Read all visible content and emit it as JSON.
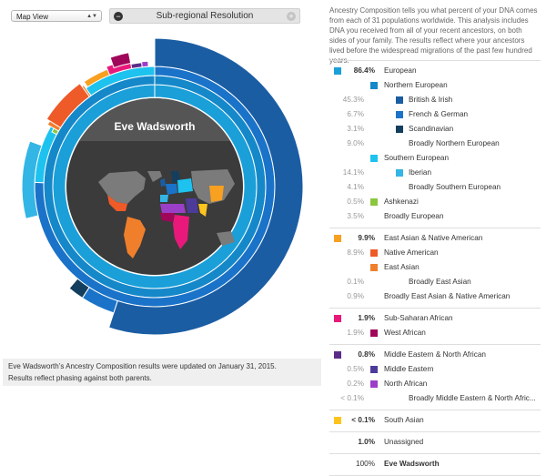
{
  "controls": {
    "view_select": "Map View",
    "resolution_label": "Sub-regional Resolution"
  },
  "chart": {
    "person_name": "Eve Wadsworth",
    "colors": {
      "background_disk": "#3b3b3b",
      "name_band": "#555555",
      "continents": "#7b7b7b"
    }
  },
  "notice": {
    "line1": "Eve Wadsworth’s Ancestry Composition results were updated on January 31, 2015.",
    "line2": "Results reflect phasing against both parents."
  },
  "intro": "Ancestry Composition tells you what percent of your DNA comes from each of 31 populations worldwide. This analysis includes DNA you received from all of your recent ancestors, on both sides of your family. The results reflect where your ancestors lived before the widespread migrations of the past few hundred years.",
  "legend": [
    {
      "rows": [
        {
          "level": 0,
          "pct": "86.4%",
          "label": "European",
          "color": "#1a9fd9"
        },
        {
          "level": 1,
          "pct": "",
          "label": "Northern European",
          "color": "#1588c9"
        },
        {
          "level": 2,
          "pct": "45.3%",
          "label": "British & Irish",
          "color": "#1b5da3"
        },
        {
          "level": 2,
          "pct": "6.7%",
          "label": "French & German",
          "color": "#1a73c8"
        },
        {
          "level": 2,
          "pct": "3.1%",
          "label": "Scandinavian",
          "color": "#143e5e"
        },
        {
          "level": 3,
          "pct": "9.0%",
          "label": "Broadly Northern European"
        },
        {
          "level": 1,
          "pct": "",
          "label": "Southern European",
          "color": "#1ec2ef"
        },
        {
          "level": 2,
          "pct": "14.1%",
          "label": "Iberian",
          "color": "#33b5e5"
        },
        {
          "level": 3,
          "pct": "4.1%",
          "label": "Broadly Southern European"
        },
        {
          "level": 1,
          "pct": "0.5%",
          "label": "Ashkenazi",
          "color": "#8cc63f"
        },
        {
          "level": 3,
          "pct": "3.5%",
          "label": "Broadly European",
          "offset": 1
        }
      ]
    },
    {
      "rows": [
        {
          "level": 0,
          "pct": "9.9%",
          "label": "East Asian & Native American",
          "color": "#f8a020"
        },
        {
          "level": 1,
          "pct": "8.9%",
          "label": "Native American",
          "color": "#ee5a28"
        },
        {
          "level": 1,
          "pct": "",
          "label": "East Asian",
          "color": "#f07f2c"
        },
        {
          "level": 3,
          "pct": "0.1%",
          "label": "Broadly East Asian"
        },
        {
          "level": 3,
          "pct": "0.9%",
          "label": "Broadly East Asian & Native American",
          "offset": 1
        }
      ]
    },
    {
      "rows": [
        {
          "level": 0,
          "pct": "1.9%",
          "label": "Sub-Saharan African",
          "color": "#e8197a"
        },
        {
          "level": 1,
          "pct": "1.9%",
          "label": "West African",
          "color": "#a0075a"
        }
      ]
    },
    {
      "rows": [
        {
          "level": 0,
          "pct": "0.8%",
          "label": "Middle Eastern & North African",
          "color": "#5b2b8a"
        },
        {
          "level": 1,
          "pct": "0.5%",
          "label": "Middle Eastern",
          "color": "#4d3b9a"
        },
        {
          "level": 1,
          "pct": "0.2%",
          "label": "North African",
          "color": "#9b3fc8"
        },
        {
          "level": 3,
          "pct": "< 0.1%",
          "label": "Broadly Middle Eastern & North Afric..."
        }
      ]
    },
    {
      "rows": [
        {
          "level": 0,
          "pct": "< 0.1%",
          "label": "South Asian",
          "color": "#fdc41e",
          "plain": true
        }
      ]
    },
    {
      "rows": [
        {
          "level": 0,
          "pct": "1.0%",
          "label": "Unassigned",
          "plain": true
        }
      ]
    },
    {
      "rows": [
        {
          "level": 0,
          "pct": "100%",
          "label": "Eve Wadsworth",
          "total": true
        }
      ]
    }
  ]
}
